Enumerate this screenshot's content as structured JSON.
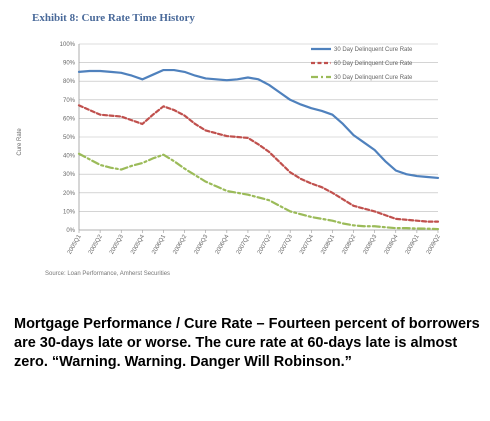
{
  "chart_data": {
    "type": "line",
    "title": "Exhibit 8:  Cure Rate Time History",
    "ylabel": "Cure Rate",
    "xlabel": "",
    "ylim": [
      0,
      100
    ],
    "yticks": [
      "0%",
      "10%",
      "20%",
      "30%",
      "40%",
      "50%",
      "60%",
      "70%",
      "80%",
      "90%",
      "100%"
    ],
    "categories": [
      "2005Q1",
      "2005Q2",
      "2005Q3",
      "2005Q4",
      "2006Q1",
      "2006Q2",
      "2006Q3",
      "2006Q4",
      "2007Q1",
      "2007Q2",
      "2007Q3",
      "2007Q4",
      "2008Q1",
      "2008Q2",
      "2008Q3",
      "2008Q4",
      "2009Q1",
      "2009Q2"
    ],
    "grid": true,
    "legend_position": "top-right",
    "series": [
      {
        "name": "30 Day Delinquent Cure Rate",
        "color": "#4f81bd",
        "dash": "solid",
        "x": [
          0,
          0.5,
          1,
          1.5,
          2,
          2.5,
          3,
          3.5,
          4,
          4.5,
          5,
          5.5,
          6,
          6.5,
          7,
          7.5,
          8,
          8.5,
          9,
          9.5,
          10,
          10.5,
          11,
          11.5,
          12,
          12.5,
          13,
          13.5,
          14,
          14.5,
          15,
          15.5,
          16,
          16.5,
          17
        ],
        "values": [
          85,
          85.5,
          85.5,
          85,
          84.5,
          83,
          81,
          83.5,
          86,
          86,
          85,
          83,
          81.5,
          81,
          80.5,
          81,
          82,
          81,
          78,
          74,
          70,
          67.5,
          65.5,
          64,
          62,
          57,
          51,
          47,
          43,
          37,
          32,
          30,
          29,
          28.5,
          28
        ]
      },
      {
        "name": "60 Day Delinquent Cure Rate",
        "color": "#c0504d",
        "dash": "dashed",
        "x": [
          0,
          0.5,
          1,
          1.5,
          2,
          2.5,
          3,
          3.5,
          4,
          4.5,
          5,
          5.5,
          6,
          6.5,
          7,
          7.5,
          8,
          8.5,
          9,
          9.5,
          10,
          10.5,
          11,
          11.5,
          12,
          12.5,
          13,
          13.5,
          14,
          14.5,
          15,
          15.5,
          16,
          16.5,
          17
        ],
        "values": [
          67,
          64.5,
          62,
          61.5,
          61,
          59,
          57,
          62,
          66.5,
          64.5,
          61.5,
          57,
          53.5,
          52,
          50.5,
          50,
          49.5,
          46,
          42,
          36.5,
          31,
          27.5,
          25,
          23,
          20,
          16.5,
          13,
          11.5,
          10,
          8,
          6,
          5.5,
          5,
          4.5,
          4.5
        ]
      },
      {
        "name": "30 Day Delinquent Cure Rate",
        "color": "#9bbb59",
        "dash": "dashdot",
        "x": [
          0,
          0.5,
          1,
          1.5,
          2,
          2.5,
          3,
          3.5,
          4,
          4.5,
          5,
          5.5,
          6,
          6.5,
          7,
          7.5,
          8,
          8.5,
          9,
          9.5,
          10,
          10.5,
          11,
          11.5,
          12,
          12.5,
          13,
          13.5,
          14,
          14.5,
          15,
          15.5,
          16,
          16.5,
          17
        ],
        "values": [
          41,
          38,
          35,
          33.5,
          32.5,
          34.5,
          36,
          38.5,
          40.5,
          37,
          33,
          29.5,
          26,
          23.5,
          21,
          20,
          19,
          17.5,
          16,
          13,
          10,
          8.5,
          7,
          6,
          5,
          3.5,
          2.5,
          2,
          2,
          1.5,
          1,
          1,
          0.8,
          0.7,
          0.5
        ]
      }
    ]
  },
  "source": "Source: Loan Performance, Amherst Securities",
  "caption": "Mortgage Performance / Cure Rate – Fourteen percent of borrowers are 30-days late or worse. The cure rate at 60-days late is almost zero. “Warning. Warning. Danger Will Robinson.”"
}
